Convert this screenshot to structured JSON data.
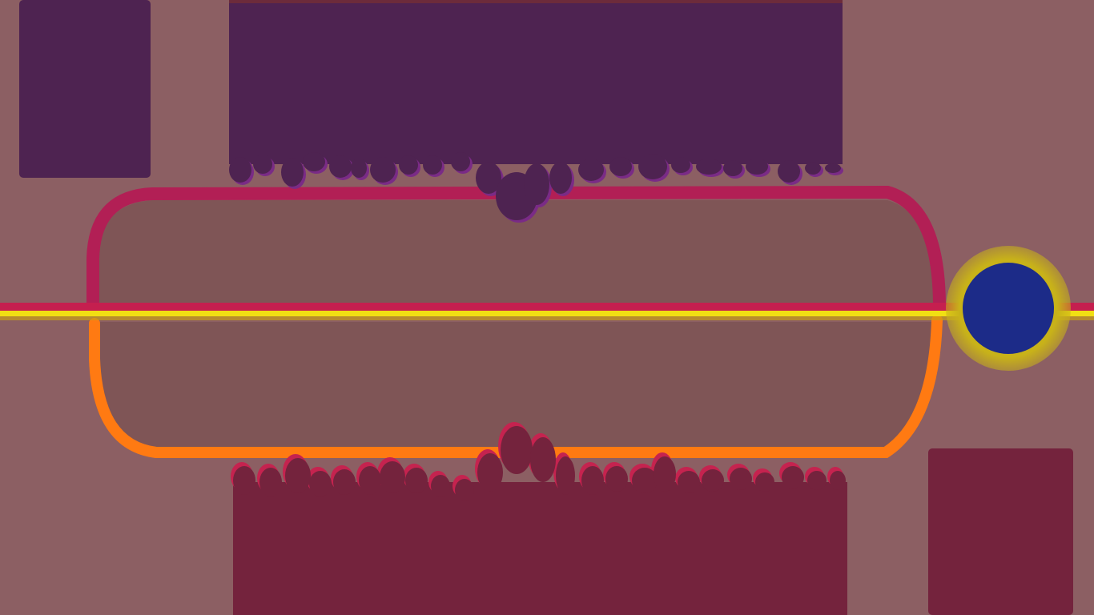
{
  "game": {
    "palette": {
      "background": "#8c5f63",
      "arena_fill": "#7f5556",
      "top_hazard": "#4e2351",
      "top_hazard_highlight": "#7a2b86",
      "top_border": "#b21f55",
      "bottom_hazard": "#74233d",
      "bottom_hazard_highlight": "#c5234f",
      "bottom_border": "#ff7a12",
      "guide_line": "#f1df13",
      "divider_line": "#c51f4f",
      "player_core": "#1c2b88",
      "player_ring": "#c8b219"
    },
    "icons": {
      "player": "ball-icon",
      "top_hazard": "purple-goo-icon",
      "bottom_hazard": "crimson-goo-icon"
    }
  }
}
